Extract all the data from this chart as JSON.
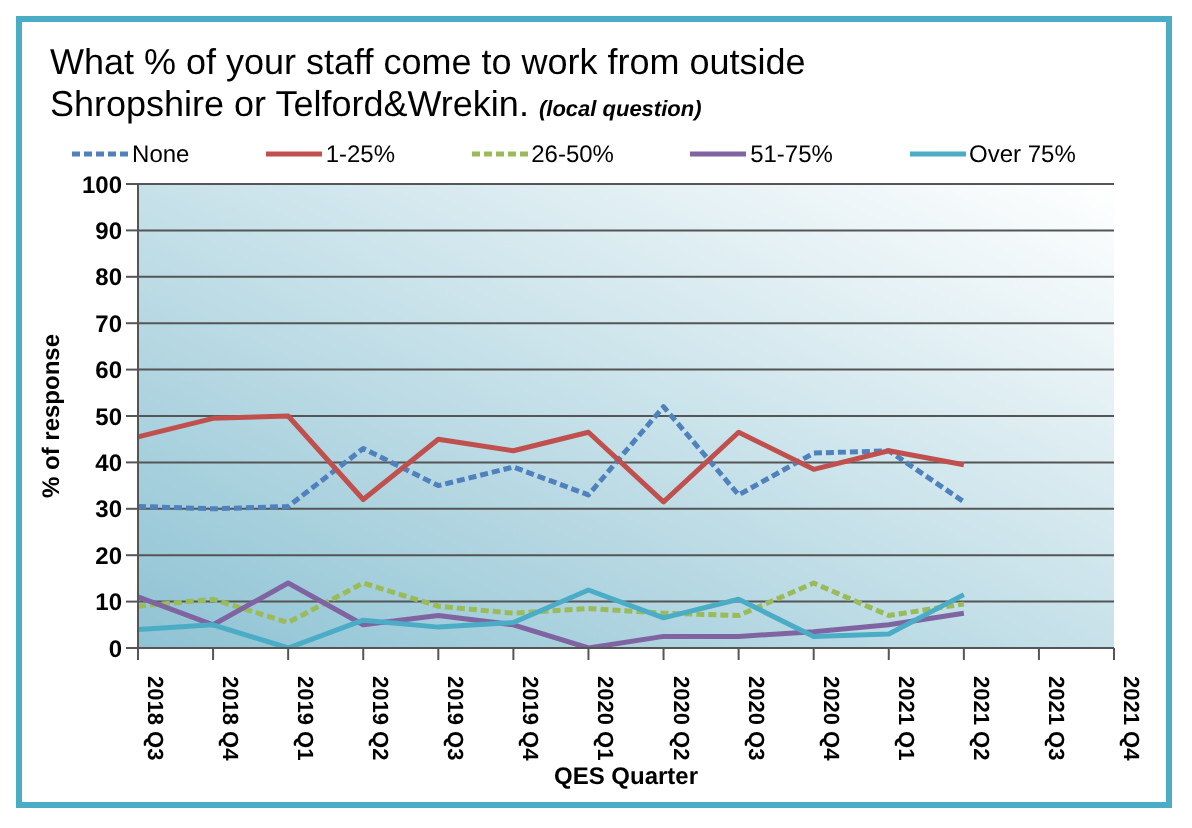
{
  "chart_data": {
    "type": "line",
    "title": "What % of your staff come to work from outside Shropshire or Telford&Wrekin.",
    "subtitle": "(local question)",
    "xlabel": "QES Quarter",
    "ylabel": "% of response",
    "categories": [
      "2018 Q3",
      "2018 Q4",
      "2019 Q1",
      "2019 Q2",
      "2019 Q3",
      "2019 Q4",
      "2020 Q1",
      "2020 Q2",
      "2020 Q3",
      "2020 Q4",
      "2021 Q1",
      "2021 Q2",
      "2021 Q3",
      "2021 Q4"
    ],
    "series": [
      {
        "name": "None",
        "color": "#4f81bd",
        "line_style": "dashed",
        "values": [
          30.5,
          30,
          30.5,
          43,
          35,
          39,
          33,
          52,
          33,
          42,
          42.5,
          31.5,
          null,
          null
        ]
      },
      {
        "name": "1-25%",
        "color": "#c0504d",
        "line_style": "solid",
        "values": [
          45.5,
          49.5,
          50,
          32,
          45,
          42.5,
          46.5,
          31.5,
          46.5,
          38.5,
          42.5,
          39.5,
          null,
          null
        ]
      },
      {
        "name": "26-50%",
        "color": "#9bbb59",
        "line_style": "dashed",
        "values": [
          9,
          10.5,
          5.5,
          14,
          9,
          7.5,
          8.5,
          7.5,
          7,
          14,
          7,
          9.5,
          null,
          null
        ]
      },
      {
        "name": "51-75%",
        "color": "#8064a2",
        "line_style": "solid",
        "values": [
          11,
          5,
          14,
          5,
          7,
          5,
          0,
          2.5,
          2.5,
          3.5,
          5,
          7.5,
          null,
          null
        ]
      },
      {
        "name": "Over 75%",
        "color": "#4bacc6",
        "line_style": "solid",
        "values": [
          4,
          5,
          0,
          6,
          4.5,
          5.5,
          12.5,
          6.5,
          10.5,
          2.5,
          3,
          11.5,
          null,
          null
        ]
      }
    ],
    "ylim": [
      0,
      100
    ],
    "yticks": [
      0,
      10,
      20,
      30,
      40,
      50,
      60,
      70,
      80,
      90,
      100
    ],
    "grid": "y",
    "legend": "top",
    "marker": "none"
  }
}
